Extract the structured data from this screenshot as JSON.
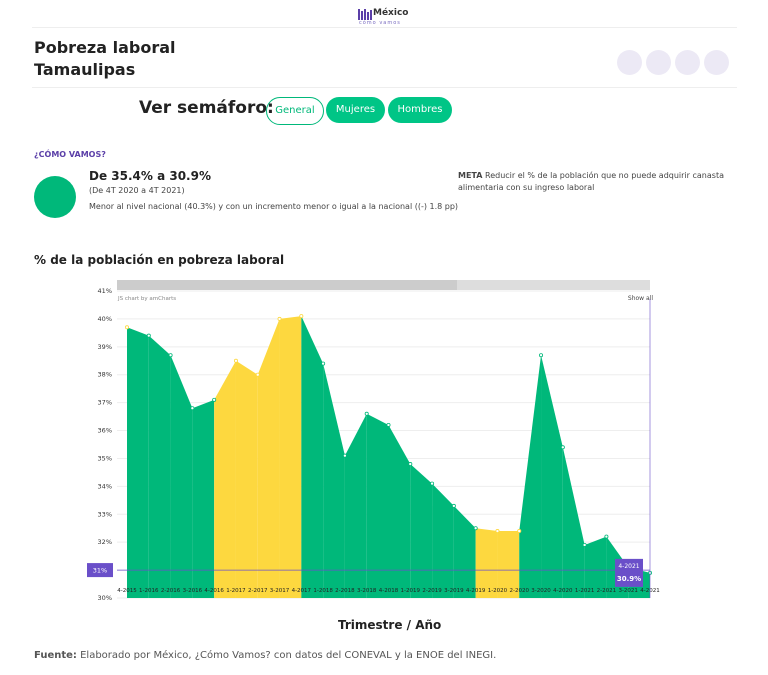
{
  "header": {
    "logo": "México",
    "logo_sub": "cómo vamos",
    "title": "Pobreza laboral",
    "subtitle": "Tamaulipas"
  },
  "semaforo": {
    "label": "Ver semáforo:",
    "buttons": [
      "General",
      "Mujeres",
      "Hombres"
    ]
  },
  "summary": {
    "kicker": "¿CÓMO VAMOS?",
    "headline": "De 35.4% a 30.9%",
    "period": "(De 4T 2020 a 4T 2021)",
    "note": "Menor al nivel nacional (40.3%) y con un incremento menor o igual a la nacional ((-) 1.8 pp)",
    "goal_label": "META",
    "goal_text": "Reducir el % de la población que no puede adquirir canasta alimentaria con su ingreso laboral"
  },
  "chart_data": {
    "type": "area",
    "title": "% de la población en pobreza laboral",
    "credit": "JS chart by amCharts",
    "zoom_button": "Show all",
    "x_label": "Trimestre / Año",
    "categories": [
      "4-2015",
      "1-2016",
      "2-2016",
      "3-2016",
      "4-2016",
      "1-2017",
      "2-2017",
      "3-2017",
      "4-2017",
      "1-2018",
      "2-2018",
      "3-2018",
      "4-2018",
      "1-2019",
      "2-2019",
      "3-2019",
      "4-2019",
      "1-2020",
      "2-2020",
      "3-2020",
      "4-2020",
      "1-2021",
      "2-2021",
      "3-2021",
      "4-2021"
    ],
    "values": [
      39.7,
      39.4,
      38.7,
      36.8,
      37.1,
      38.5,
      38.0,
      40.0,
      40.1,
      38.4,
      35.1,
      36.6,
      36.2,
      34.8,
      34.1,
      33.3,
      32.5,
      32.4,
      32.4,
      38.7,
      35.4,
      31.9,
      32.2,
      31.1,
      30.9
    ],
    "value_labels": [
      null,
      null,
      null,
      null,
      null,
      null,
      null,
      null,
      null,
      null,
      null,
      null,
      null,
      null,
      null,
      null,
      null,
      null,
      null,
      null,
      null,
      null,
      null,
      null,
      "30.9%"
    ],
    "colors": [
      "#fdd83f",
      "#00b87a",
      "#00b87a",
      "#00b87a",
      "#00b87a",
      "#fdd83f",
      "#fdd83f",
      "#fdd83f",
      "#fdd83f",
      "#00b87a",
      "#00b87a",
      "#00b87a",
      "#00b87a",
      "#00b87a",
      "#00b87a",
      "#00b87a",
      "#00b87a",
      "#fdd83f",
      "#fdd83f",
      "#00b87a",
      "#00b87a",
      "#00b87a",
      "#00b87a",
      "#00b87a",
      "#00b87a"
    ],
    "ylim": [
      30,
      41
    ],
    "yticks": [
      {
        "value": 30,
        "label": "30%"
      },
      {
        "value": 31,
        "label": "31%"
      },
      {
        "value": 32,
        "label": "32%"
      },
      {
        "value": 33,
        "label": "33%"
      },
      {
        "value": 34,
        "label": "34%"
      },
      {
        "value": 35,
        "label": "35%"
      },
      {
        "value": 36,
        "label": "36%"
      },
      {
        "value": 37,
        "label": "37%"
      },
      {
        "value": 38,
        "label": "38%"
      },
      {
        "value": 39,
        "label": "39%"
      },
      {
        "value": 40,
        "label": "40%"
      },
      {
        "value": 41,
        "label": "41%"
      }
    ],
    "grid": true,
    "reference": {
      "value": 31,
      "label": "31%",
      "color": "#6a4fc9"
    }
  },
  "footer": {
    "label": "Fuente:",
    "text": "Elaborado por México, ¿Cómo Vamos? con datos del CONEVAL y la ENOE del INEGI."
  }
}
